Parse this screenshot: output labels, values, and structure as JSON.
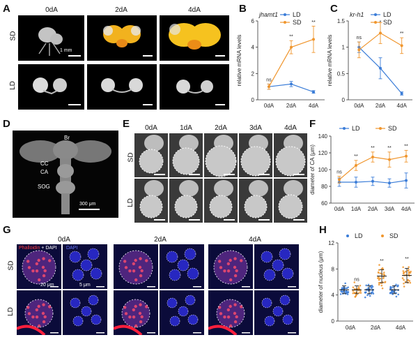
{
  "panels": {
    "A": "A",
    "B": "B",
    "C": "C",
    "D": "D",
    "E": "E",
    "F": "F",
    "G": "G",
    "H": "H"
  },
  "panelA": {
    "cols": [
      "0dA",
      "2dA",
      "4dA"
    ],
    "rows": [
      "SD",
      "LD"
    ],
    "scalebar": "1 mm"
  },
  "panelD": {
    "labels": [
      "Br",
      "CC",
      "CA",
      "SOG"
    ],
    "scalebar": "300 μm"
  },
  "panelE": {
    "cols": [
      "0dA",
      "1dA",
      "2dA",
      "3dA",
      "4dA"
    ],
    "rows": [
      "SD",
      "LD"
    ],
    "scalebar": "100 μm"
  },
  "panelG": {
    "cols": [
      "0dA",
      "2dA",
      "4dA"
    ],
    "rows": [
      "SD",
      "LD"
    ],
    "stain_phalloidin": "Phalloidin",
    "stain_plus": " + DAPI",
    "stain_dapi": "DAPI",
    "scalebar_left": "20 μm",
    "scalebar_right": "5 μm"
  },
  "colors": {
    "LD": "#3b7dd8",
    "SD": "#f0962e"
  },
  "chart_data": [
    {
      "id": "B",
      "type": "line",
      "title": "jhamt1",
      "ylabel": "relative mRNA levels",
      "categories": [
        "0dA",
        "2dA",
        "4dA"
      ],
      "ylim": [
        0,
        6
      ],
      "yticks": [
        0,
        2,
        4,
        6
      ],
      "series": [
        {
          "name": "LD",
          "values": [
            1.0,
            1.2,
            0.6
          ],
          "err": [
            0.2,
            0.2,
            0.1
          ]
        },
        {
          "name": "SD",
          "values": [
            1.0,
            4.0,
            4.6
          ],
          "err": [
            0.2,
            0.5,
            1.0
          ]
        }
      ],
      "annotations": [
        "ns",
        "**",
        "**"
      ]
    },
    {
      "id": "C",
      "type": "line",
      "title": "kr-h1",
      "ylabel": "relative mRNA levels",
      "categories": [
        "0dA",
        "2dA",
        "4dA"
      ],
      "ylim": [
        0,
        1.5
      ],
      "yticks": [
        0,
        0.5,
        1,
        1.5
      ],
      "series": [
        {
          "name": "LD",
          "values": [
            1.0,
            0.6,
            0.12
          ],
          "err": [
            0.1,
            0.2,
            0.03
          ]
        },
        {
          "name": "SD",
          "values": [
            0.95,
            1.27,
            1.03
          ],
          "err": [
            0.15,
            0.2,
            0.15
          ]
        }
      ],
      "annotations": [
        "ns",
        "*",
        "**"
      ]
    },
    {
      "id": "F",
      "type": "line",
      "title": "",
      "ylabel": "diameter of CA (μm)",
      "categories": [
        "0dA",
        "1dA",
        "2dA",
        "3dA",
        "4dA"
      ],
      "ylim": [
        60,
        140
      ],
      "yticks": [
        60,
        80,
        100,
        120,
        140
      ],
      "series": [
        {
          "name": "LD",
          "values": [
            85,
            85,
            86,
            84,
            87
          ],
          "err": [
            5,
            6,
            5,
            5,
            9
          ]
        },
        {
          "name": "SD",
          "values": [
            88,
            105,
            115,
            112,
            116
          ],
          "err": [
            4,
            6,
            6,
            9,
            7
          ]
        }
      ],
      "annotations": [
        "ns",
        "**",
        "**",
        "**",
        "**"
      ]
    },
    {
      "id": "H",
      "type": "scatter",
      "title": "",
      "ylabel": "diameter of nucleus (μm)",
      "categories": [
        "0dA",
        "2dA",
        "4dA"
      ],
      "ylim": [
        0,
        12
      ],
      "yticks": [
        0,
        4,
        8,
        12
      ],
      "series": [
        {
          "name": "LD",
          "mean": [
            4.8,
            4.8,
            4.8
          ],
          "sd": [
            0.6,
            0.6,
            0.6
          ]
        },
        {
          "name": "SD",
          "mean": [
            4.8,
            6.9,
            7.0
          ],
          "sd": [
            0.6,
            1.0,
            1.1
          ]
        }
      ],
      "annotations": [
        "ns",
        "**",
        "**"
      ]
    }
  ]
}
